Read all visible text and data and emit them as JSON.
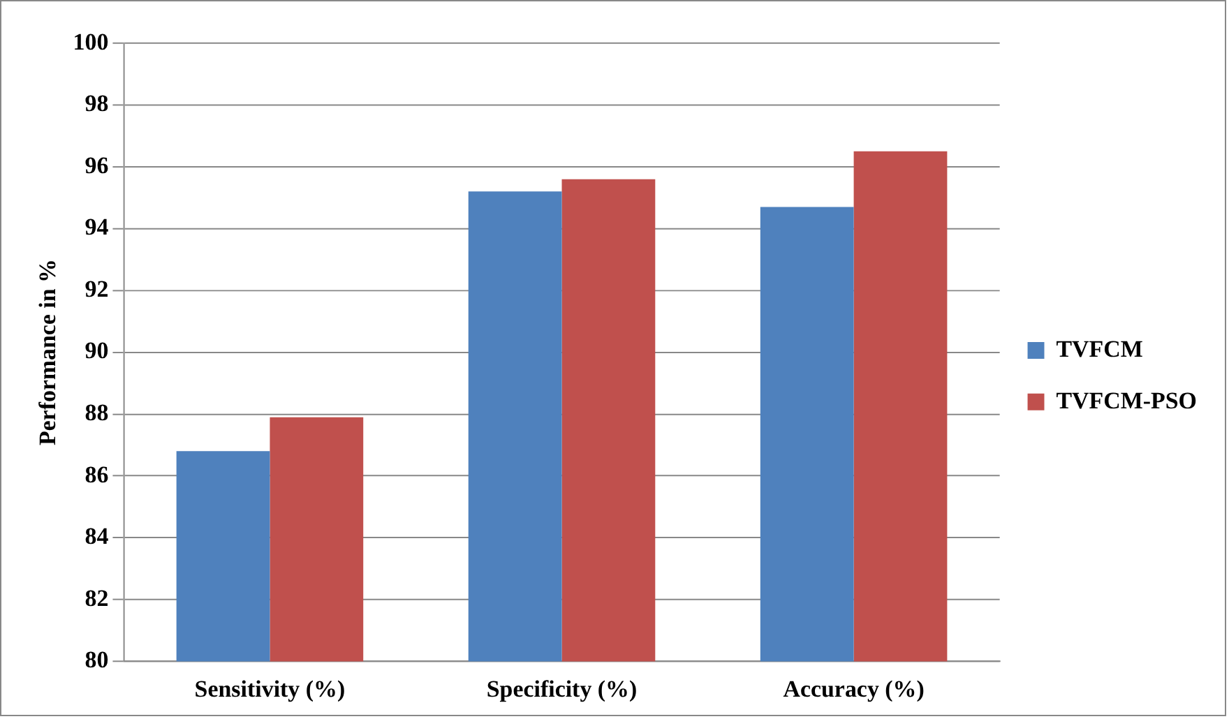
{
  "chart_data": {
    "type": "bar",
    "ylabel": "Performance in %",
    "categories": [
      "Sensitivity (%)",
      "Specificity (%)",
      "Accuracy (%)"
    ],
    "series": [
      {
        "name": "TVFCM",
        "color": "#4f81bd",
        "values": [
          86.8,
          95.2,
          94.7
        ]
      },
      {
        "name": "TVFCM-PSO",
        "color": "#c0504d",
        "values": [
          87.9,
          95.6,
          96.5
        ]
      }
    ],
    "ylim": [
      80,
      100
    ],
    "yticks": [
      80,
      82,
      84,
      86,
      88,
      90,
      92,
      94,
      96,
      98,
      100
    ],
    "grid": "y",
    "legend": "right"
  }
}
